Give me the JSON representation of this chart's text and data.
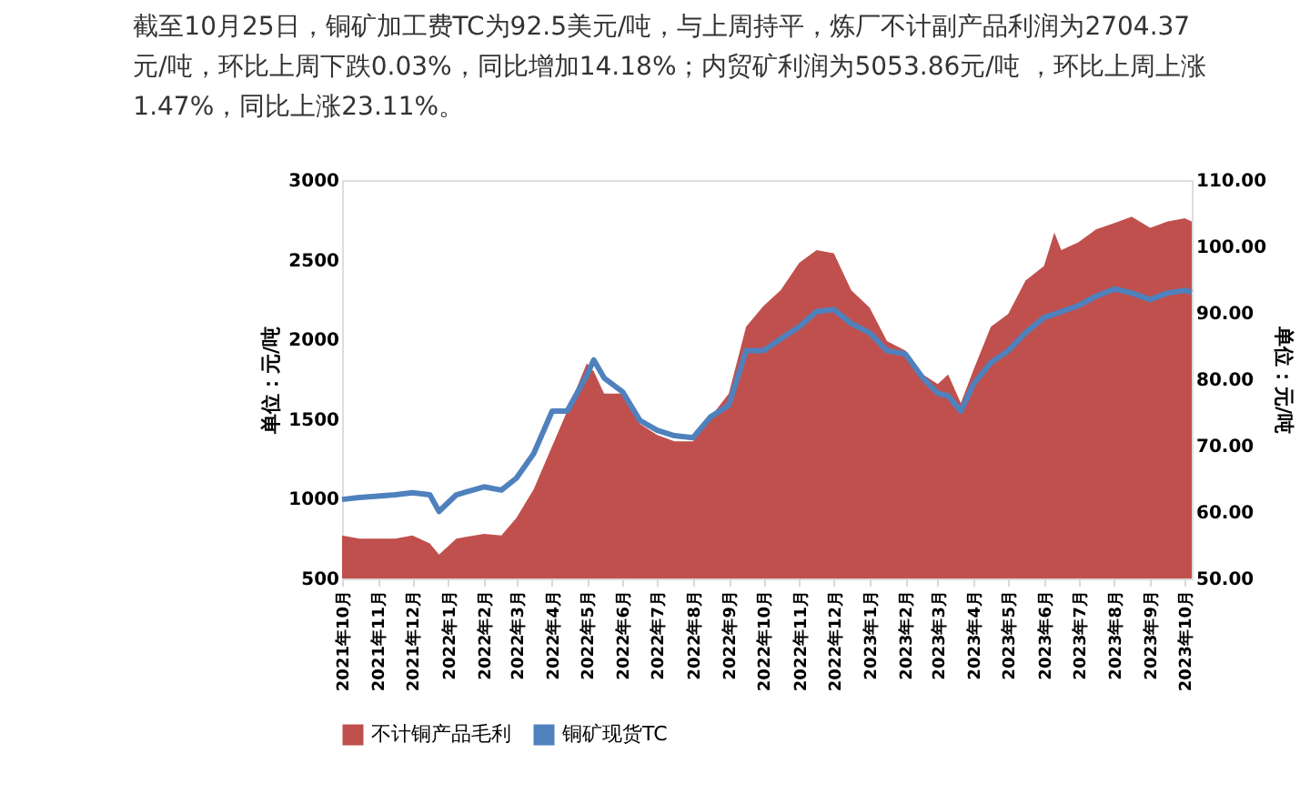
{
  "chart_data": {
    "type": "area",
    "title": "截至10月25日，铜矿加工费TC为92.5美元/吨，与上周持平，炼厂不计副产品利润为2704.37元/吨，环比上周下跌0.03%，同比增加14.18%；内贸矿利润为5053.86元/吨 ，环比上周上涨1.47%，同比上涨23.11%。",
    "ylabel": "单位：元/吨",
    "y2label": "单位：元/吨",
    "x": [
      "2021-10-01",
      "2021-10-16",
      "2021-11-01",
      "2021-11-16",
      "2021-12-01",
      "2021-12-16",
      "2021-12-24",
      "2022-01-08",
      "2022-02-01",
      "2022-02-16",
      "2022-03-01",
      "2022-03-16",
      "2022-04-01",
      "2022-04-14",
      "2022-05-01",
      "2022-05-07",
      "2022-05-16",
      "2022-06-01",
      "2022-06-16",
      "2022-07-01",
      "2022-07-16",
      "2022-08-01",
      "2022-08-16",
      "2022-09-01",
      "2022-09-16",
      "2022-10-01",
      "2022-10-16",
      "2022-11-01",
      "2022-11-16",
      "2022-12-01",
      "2022-12-16",
      "2023-01-01",
      "2023-01-16",
      "2023-02-01",
      "2023-02-16",
      "2023-03-01",
      "2023-03-10",
      "2023-03-21",
      "2023-04-01",
      "2023-04-16",
      "2023-05-01",
      "2023-05-16",
      "2023-06-01",
      "2023-06-10",
      "2023-06-16",
      "2023-07-01",
      "2023-07-16",
      "2023-08-01",
      "2023-08-16",
      "2023-09-01",
      "2023-09-16",
      "2023-10-01",
      "2023-10-07"
    ],
    "series": [
      {
        "name": "不计铜产品毛利",
        "color": "#c0504d",
        "values": [
          770,
          750,
          750,
          750,
          770,
          720,
          650,
          750,
          780,
          770,
          880,
          1060,
          1330,
          1550,
          1850,
          1800,
          1660,
          1660,
          1470,
          1400,
          1360,
          1360,
          1510,
          1660,
          2080,
          2210,
          2310,
          2480,
          2560,
          2540,
          2310,
          2200,
          1990,
          1930,
          1780,
          1720,
          1780,
          1600,
          1810,
          2080,
          2160,
          2370,
          2460,
          2670,
          2560,
          2610,
          2690,
          2730,
          2770,
          2700,
          2740,
          2760,
          2740
        ]
      },
      {
        "name": "铜矿现货TC",
        "type": "line",
        "axis": "y2",
        "color": "#4f81bd",
        "values": [
          61.9,
          62.2,
          62.4,
          62.6,
          62.9,
          62.6,
          60.1,
          62.6,
          63.8,
          63.3,
          65.1,
          68.8,
          75.2,
          75.2,
          80.6,
          82.9,
          80.2,
          78.1,
          73.8,
          72.3,
          71.5,
          71.2,
          74.3,
          76.1,
          84.3,
          84.3,
          86.1,
          87.9,
          90.2,
          90.5,
          88.4,
          87.0,
          84.3,
          83.8,
          80.2,
          77.9,
          77.5,
          75.2,
          79.3,
          82.5,
          84.3,
          87.0,
          89.3,
          89.8,
          90.2,
          91.1,
          92.5,
          93.6,
          93.0,
          92.0,
          93.0,
          93.4,
          93.1
        ]
      }
    ],
    "xlim": [
      "2021-10-01",
      "2023-10-07"
    ],
    "xticks": [
      {
        "value": "2021-10-01",
        "label": "2021年10月"
      },
      {
        "value": "2021-11-01",
        "label": "2021年11月"
      },
      {
        "value": "2021-12-01",
        "label": "2021年12月"
      },
      {
        "value": "2022-01-01",
        "label": "2022年1月"
      },
      {
        "value": "2022-02-01",
        "label": "2022年2月"
      },
      {
        "value": "2022-03-01",
        "label": "2022年3月"
      },
      {
        "value": "2022-04-01",
        "label": "2022年4月"
      },
      {
        "value": "2022-05-01",
        "label": "2022年5月"
      },
      {
        "value": "2022-06-01",
        "label": "2022年6月"
      },
      {
        "value": "2022-07-01",
        "label": "2022年7月"
      },
      {
        "value": "2022-08-01",
        "label": "2022年8月"
      },
      {
        "value": "2022-09-01",
        "label": "2022年9月"
      },
      {
        "value": "2022-10-01",
        "label": "2022年10月"
      },
      {
        "value": "2022-11-01",
        "label": "2022年11月"
      },
      {
        "value": "2022-12-01",
        "label": "2022年12月"
      },
      {
        "value": "2023-01-01",
        "label": "2023年1月"
      },
      {
        "value": "2023-02-01",
        "label": "2023年2月"
      },
      {
        "value": "2023-03-01",
        "label": "2023年3月"
      },
      {
        "value": "2023-04-01",
        "label": "2023年4月"
      },
      {
        "value": "2023-05-01",
        "label": "2023年5月"
      },
      {
        "value": "2023-06-01",
        "label": "2023年6月"
      },
      {
        "value": "2023-07-01",
        "label": "2023年7月"
      },
      {
        "value": "2023-08-01",
        "label": "2023年8月"
      },
      {
        "value": "2023-09-01",
        "label": "2023年9月"
      },
      {
        "value": "2023-10-01",
        "label": "2023年10月"
      }
    ],
    "ylim": [
      500,
      3000
    ],
    "yticks": [
      500,
      1000,
      1500,
      2000,
      2500,
      3000
    ],
    "y2lim": [
      50,
      110
    ],
    "y2ticks": [
      {
        "value": 50,
        "label": "50.00"
      },
      {
        "value": 60,
        "label": "60.00"
      },
      {
        "value": 70,
        "label": "70.00"
      },
      {
        "value": 80,
        "label": "80.00"
      },
      {
        "value": 90,
        "label": "90.00"
      },
      {
        "value": 100,
        "label": "100.00"
      },
      {
        "value": 110,
        "label": "110.00"
      }
    ],
    "grid": false,
    "legend": "bottom"
  }
}
